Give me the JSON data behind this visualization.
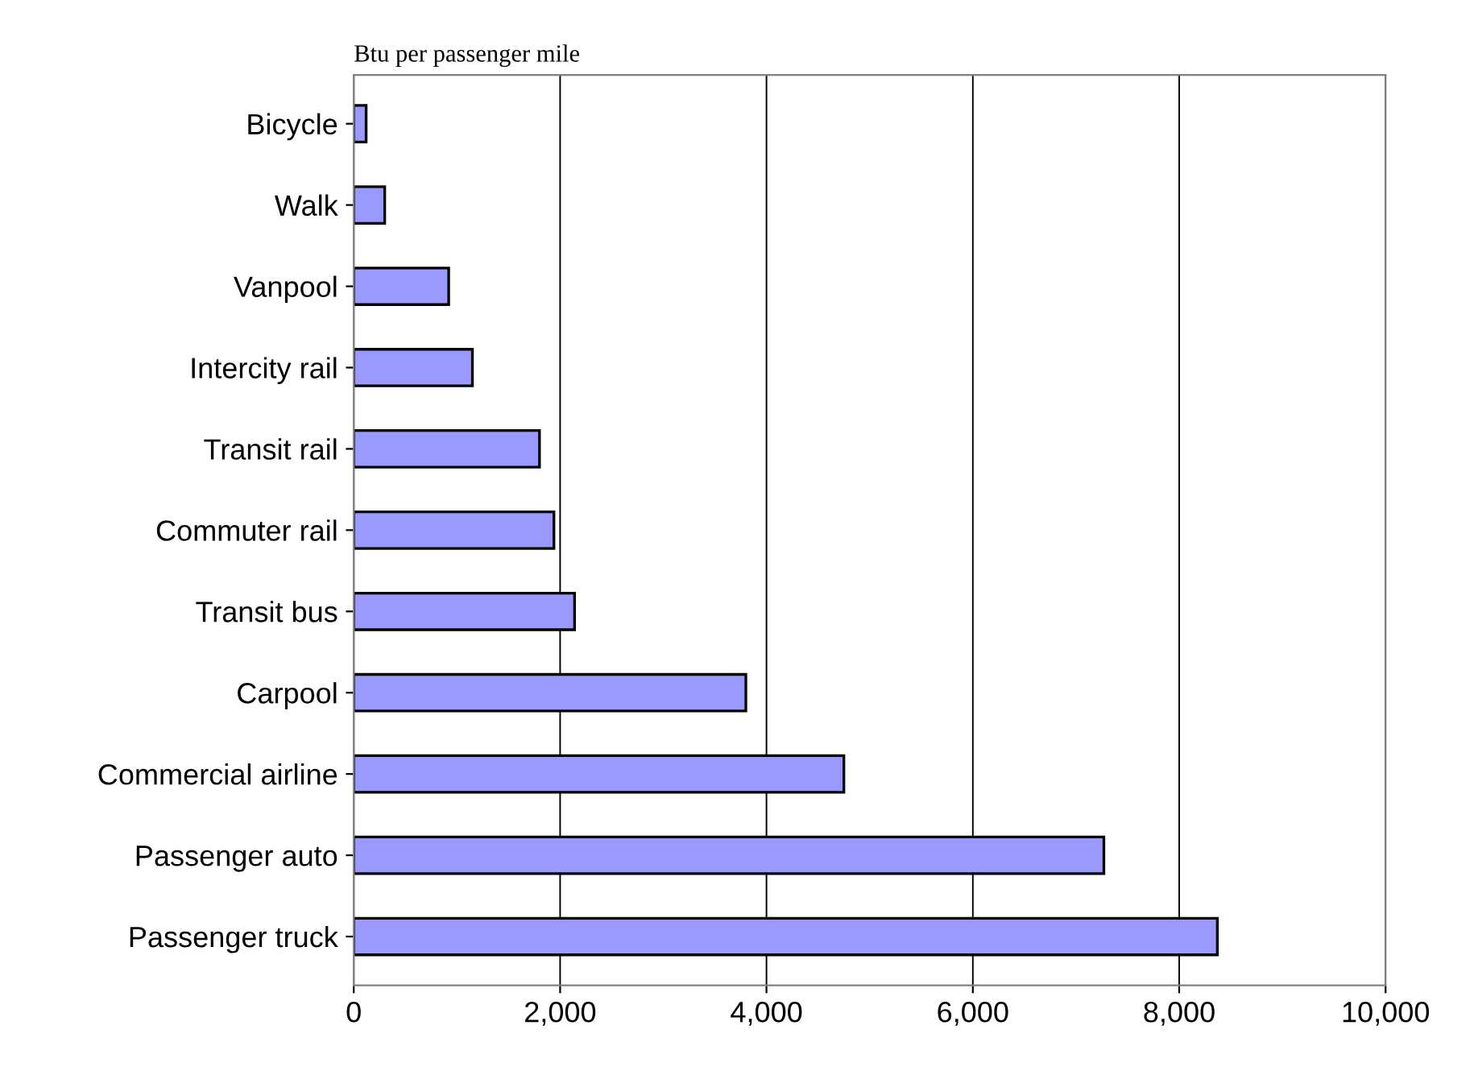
{
  "chart_data": {
    "type": "bar",
    "orientation": "horizontal",
    "xlabel": "Btu per passenger mile",
    "categories": [
      "Bicycle",
      "Walk",
      "Vanpool",
      "Intercity rail",
      "Transit rail",
      "Commuter rail",
      "Transit bus",
      "Carpool",
      "Commercial airline",
      "Passenger auto",
      "Passenger truck"
    ],
    "values": [
      120,
      300,
      920,
      1150,
      1800,
      1940,
      2140,
      3800,
      4750,
      7270,
      8370
    ],
    "color": "#9999ff",
    "xlim": [
      0,
      10000
    ],
    "xticks": [
      {
        "value": 0,
        "label": "0"
      },
      {
        "value": 2000,
        "label": "2,000"
      },
      {
        "value": 4000,
        "label": "4,000"
      },
      {
        "value": 6000,
        "label": "6,000"
      },
      {
        "value": 8000,
        "label": "8,000"
      },
      {
        "value": 10000,
        "label": "10,000"
      }
    ],
    "grid": "x",
    "legend": false
  }
}
